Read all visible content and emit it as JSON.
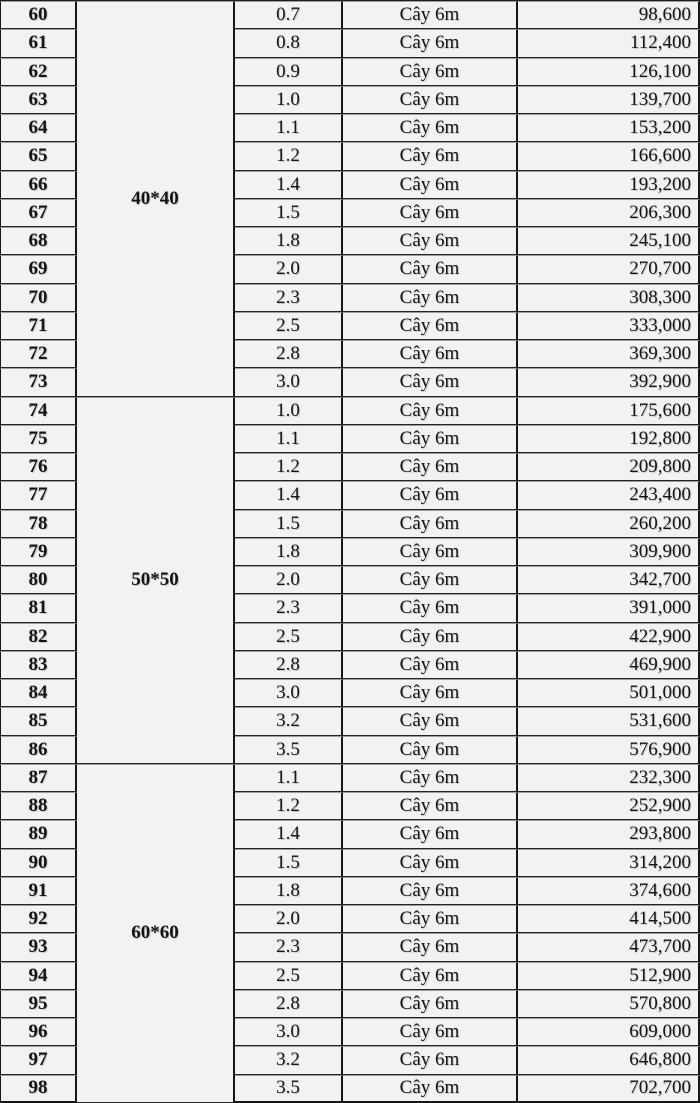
{
  "table": {
    "unit_label": "Cây 6m",
    "colors": {
      "background": "#f2f2f0",
      "border_dark": "#161616",
      "border_light": "#9d9d9d",
      "text": "#141414"
    },
    "groups": [
      {
        "label": "40*40",
        "rows": [
          {
            "no": "60",
            "thickness": "0.7",
            "unit": "Cây 6m",
            "price": "98,600"
          },
          {
            "no": "61",
            "thickness": "0.8",
            "unit": "Cây 6m",
            "price": "112,400"
          },
          {
            "no": "62",
            "thickness": "0.9",
            "unit": "Cây 6m",
            "price": "126,100"
          },
          {
            "no": "63",
            "thickness": "1.0",
            "unit": "Cây 6m",
            "price": "139,700"
          },
          {
            "no": "64",
            "thickness": "1.1",
            "unit": "Cây 6m",
            "price": "153,200"
          },
          {
            "no": "65",
            "thickness": "1.2",
            "unit": "Cây 6m",
            "price": "166,600"
          },
          {
            "no": "66",
            "thickness": "1.4",
            "unit": "Cây 6m",
            "price": "193,200"
          },
          {
            "no": "67",
            "thickness": "1.5",
            "unit": "Cây 6m",
            "price": "206,300"
          },
          {
            "no": "68",
            "thickness": "1.8",
            "unit": "Cây 6m",
            "price": "245,100"
          },
          {
            "no": "69",
            "thickness": "2.0",
            "unit": "Cây 6m",
            "price": "270,700"
          },
          {
            "no": "70",
            "thickness": "2.3",
            "unit": "Cây 6m",
            "price": "308,300"
          },
          {
            "no": "71",
            "thickness": "2.5",
            "unit": "Cây 6m",
            "price": "333,000"
          },
          {
            "no": "72",
            "thickness": "2.8",
            "unit": "Cây 6m",
            "price": "369,300"
          },
          {
            "no": "73",
            "thickness": "3.0",
            "unit": "Cây 6m",
            "price": "392,900"
          }
        ]
      },
      {
        "label": "50*50",
        "rows": [
          {
            "no": "74",
            "thickness": "1.0",
            "unit": "Cây 6m",
            "price": "175,600"
          },
          {
            "no": "75",
            "thickness": "1.1",
            "unit": "Cây 6m",
            "price": "192,800"
          },
          {
            "no": "76",
            "thickness": "1.2",
            "unit": "Cây 6m",
            "price": "209,800"
          },
          {
            "no": "77",
            "thickness": "1.4",
            "unit": "Cây 6m",
            "price": "243,400"
          },
          {
            "no": "78",
            "thickness": "1.5",
            "unit": "Cây 6m",
            "price": "260,200"
          },
          {
            "no": "79",
            "thickness": "1.8",
            "unit": "Cây 6m",
            "price": "309,900"
          },
          {
            "no": "80",
            "thickness": "2.0",
            "unit": "Cây 6m",
            "price": "342,700"
          },
          {
            "no": "81",
            "thickness": "2.3",
            "unit": "Cây 6m",
            "price": "391,000"
          },
          {
            "no": "82",
            "thickness": "2.5",
            "unit": "Cây 6m",
            "price": "422,900"
          },
          {
            "no": "83",
            "thickness": "2.8",
            "unit": "Cây 6m",
            "price": "469,900"
          },
          {
            "no": "84",
            "thickness": "3.0",
            "unit": "Cây 6m",
            "price": "501,000"
          },
          {
            "no": "85",
            "thickness": "3.2",
            "unit": "Cây 6m",
            "price": "531,600"
          },
          {
            "no": "86",
            "thickness": "3.5",
            "unit": "Cây 6m",
            "price": "576,900"
          }
        ]
      },
      {
        "label": "60*60",
        "rows": [
          {
            "no": "87",
            "thickness": "1.1",
            "unit": "Cây 6m",
            "price": "232,300"
          },
          {
            "no": "88",
            "thickness": "1.2",
            "unit": "Cây 6m",
            "price": "252,900"
          },
          {
            "no": "89",
            "thickness": "1.4",
            "unit": "Cây 6m",
            "price": "293,800"
          },
          {
            "no": "90",
            "thickness": "1.5",
            "unit": "Cây 6m",
            "price": "314,200"
          },
          {
            "no": "91",
            "thickness": "1.8",
            "unit": "Cây 6m",
            "price": "374,600"
          },
          {
            "no": "92",
            "thickness": "2.0",
            "unit": "Cây 6m",
            "price": "414,500"
          },
          {
            "no": "93",
            "thickness": "2.3",
            "unit": "Cây 6m",
            "price": "473,700"
          },
          {
            "no": "94",
            "thickness": "2.5",
            "unit": "Cây 6m",
            "price": "512,900"
          },
          {
            "no": "95",
            "thickness": "2.8",
            "unit": "Cây 6m",
            "price": "570,800"
          },
          {
            "no": "96",
            "thickness": "3.0",
            "unit": "Cây 6m",
            "price": "609,000"
          },
          {
            "no": "97",
            "thickness": "3.2",
            "unit": "Cây 6m",
            "price": "646,800"
          },
          {
            "no": "98",
            "thickness": "3.5",
            "unit": "Cây 6m",
            "price": "702,700"
          }
        ]
      }
    ]
  }
}
